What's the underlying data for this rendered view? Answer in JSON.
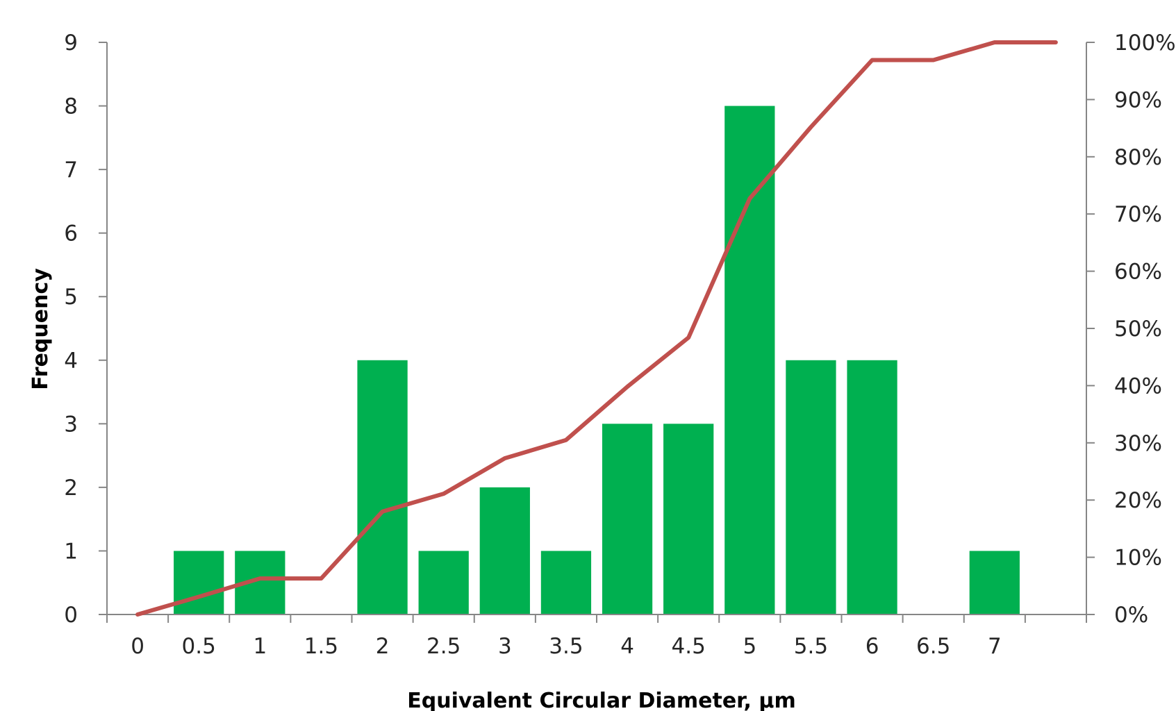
{
  "chart_data": {
    "type": "bar",
    "title": "",
    "xlabel": "Equivalent Circular Diameter, µm",
    "ylabel": "Frequency",
    "y2label": "",
    "categories": [
      "0",
      "0.5",
      "1",
      "1.5",
      "2",
      "2.5",
      "3",
      "3.5",
      "4",
      "4.5",
      "5",
      "5.5",
      "6",
      "6.5",
      "7",
      ""
    ],
    "series": [
      {
        "type": "bar",
        "axis": "left",
        "values": [
          0,
          1,
          1,
          0,
          4,
          1,
          2,
          1,
          3,
          3,
          8,
          4,
          4,
          0,
          1,
          0
        ],
        "color": "#00B050"
      },
      {
        "type": "line",
        "axis": "right",
        "values": [
          0.0,
          0.031,
          0.063,
          0.063,
          0.18,
          0.211,
          0.273,
          0.305,
          0.398,
          0.484,
          0.727,
          0.852,
          0.969,
          0.969,
          1.0,
          1.0
        ],
        "color": "#C0504D"
      }
    ],
    "ylim": [
      0,
      9
    ],
    "y2lim": [
      0,
      1
    ],
    "yticks": [
      "0",
      "1",
      "2",
      "3",
      "4",
      "5",
      "6",
      "7",
      "8",
      "9"
    ],
    "y2ticks": [
      "0%",
      "10%",
      "20%",
      "30%",
      "40%",
      "50%",
      "60%",
      "70%",
      "80%",
      "90%",
      "100%"
    ],
    "grid": false,
    "legend": "none"
  }
}
